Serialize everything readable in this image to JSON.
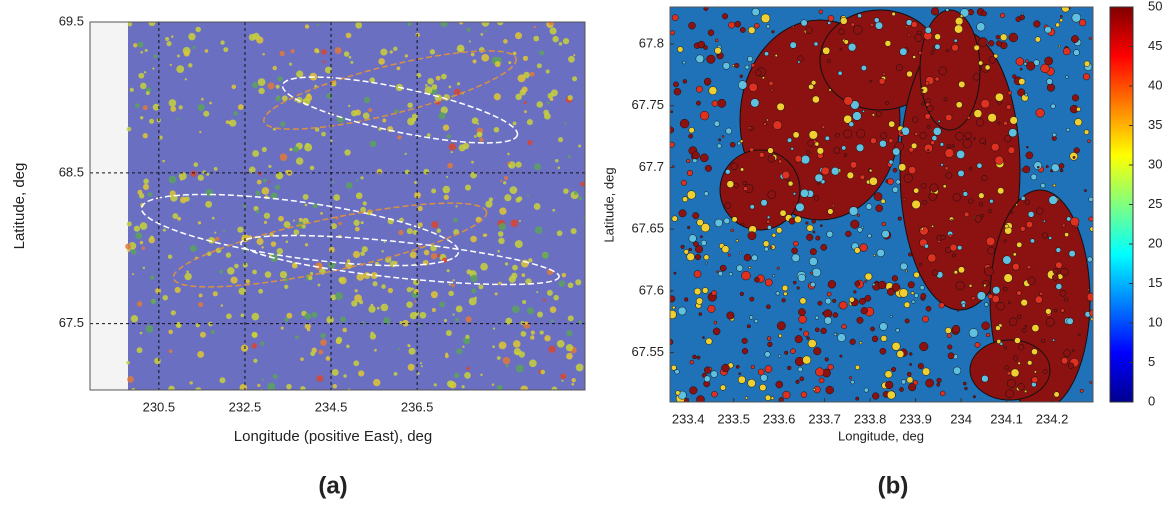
{
  "chart_data": [
    {
      "type": "heatmap",
      "label": "(a)",
      "x_label": "Longitude (positive East), deg",
      "y_label": "Latitude, deg",
      "xlim": [
        228.9,
        240.4
      ],
      "xticks": [
        230.5,
        232.5,
        234.5,
        236.5
      ],
      "ylim": [
        67.06,
        69.5
      ],
      "yticks": [
        67.5,
        68.5,
        69.5
      ],
      "grid": true
    },
    {
      "type": "heatmap",
      "label": "(b)",
      "x_label": "Longitude, deg",
      "y_label": "Latitude, deg",
      "xlim": [
        233.36,
        234.29
      ],
      "xticks": [
        233.4,
        233.5,
        233.6,
        233.7,
        233.8,
        233.9,
        234,
        234.1,
        234.2
      ],
      "ylim": [
        67.51,
        67.83
      ],
      "yticks": [
        67.55,
        67.6,
        67.65,
        67.7,
        67.75,
        67.8
      ],
      "colormap": "jet",
      "clim": [
        0,
        50
      ],
      "cticks": [
        0,
        5,
        10,
        15,
        20,
        25,
        30,
        35,
        40,
        45,
        50
      ]
    }
  ]
}
